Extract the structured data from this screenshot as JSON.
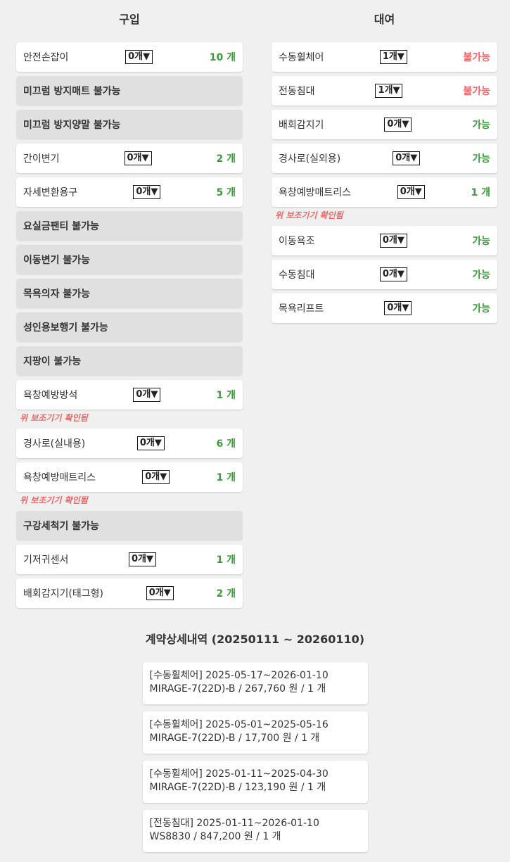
{
  "purchase": {
    "title": "구입",
    "rows": [
      {
        "type": "item",
        "name": "안전손잡이",
        "select": "0개▼",
        "value": "10 개",
        "status": "ok"
      },
      {
        "type": "na",
        "name": "미끄럼 방지매트 불가능"
      },
      {
        "type": "na",
        "name": "미끄럼 방지양말 불가능"
      },
      {
        "type": "item",
        "name": "간이변기",
        "select": "0개▼",
        "value": "2 개",
        "status": "ok"
      },
      {
        "type": "item",
        "name": "자세변환용구",
        "select": "0개▼",
        "value": "5 개",
        "status": "ok"
      },
      {
        "type": "na",
        "name": "요실금팬티 불가능"
      },
      {
        "type": "na",
        "name": "이동변기 불가능"
      },
      {
        "type": "na",
        "name": "목욕의자 불가능"
      },
      {
        "type": "na",
        "name": "성인용보행기 불가능"
      },
      {
        "type": "na",
        "name": "지팡이 불가능"
      },
      {
        "type": "item",
        "name": "욕창예방방석",
        "select": "0개▼",
        "value": "1 개",
        "status": "ok"
      },
      {
        "type": "note",
        "name": "위 보조기기 확인됨"
      },
      {
        "type": "item",
        "name": "경사로(실내용)",
        "select": "0개▼",
        "value": "6 개",
        "status": "ok"
      },
      {
        "type": "item",
        "name": "욕창예방매트리스",
        "select": "0개▼",
        "value": "1 개",
        "status": "ok"
      },
      {
        "type": "note",
        "name": "위 보조기기 확인됨"
      },
      {
        "type": "na",
        "name": "구강세척기 불가능"
      },
      {
        "type": "item",
        "name": "기저귀센서",
        "select": "0개▼",
        "value": "1 개",
        "status": "ok"
      },
      {
        "type": "item",
        "name": "배회감지기(태그형)",
        "select": "0개▼",
        "value": "2 개",
        "status": "ok"
      }
    ]
  },
  "rental": {
    "title": "대여",
    "rows": [
      {
        "type": "item",
        "name": "수동휠체어",
        "select": "1개▼",
        "value": "불가능",
        "status": "no"
      },
      {
        "type": "item",
        "name": "전동침대",
        "select": "1개▼",
        "value": "불가능",
        "status": "no"
      },
      {
        "type": "item",
        "name": "배회감지기",
        "select": "0개▼",
        "value": "가능",
        "status": "ok"
      },
      {
        "type": "item",
        "name": "경사로(실외용)",
        "select": "0개▼",
        "value": "가능",
        "status": "ok"
      },
      {
        "type": "item",
        "name": "욕창예방매트리스",
        "select": "0개▼",
        "value": "1 개",
        "status": "ok"
      },
      {
        "type": "note",
        "name": "위 보조기기 확인됨"
      },
      {
        "type": "item",
        "name": "이동욕조",
        "select": "0개▼",
        "value": "가능",
        "status": "ok"
      },
      {
        "type": "item",
        "name": "수동침대",
        "select": "0개▼",
        "value": "가능",
        "status": "ok"
      },
      {
        "type": "item",
        "name": "목욕리프트",
        "select": "0개▼",
        "value": "가능",
        "status": "ok"
      }
    ]
  },
  "contract": {
    "title": "계약상세내역 (20250111 ~ 20260110)",
    "cards": [
      {
        "line1": "[수동휠체어] 2025-05-17~2026-01-10",
        "line2": "MIRAGE-7(22D)-B / 267,760 원 / 1 개"
      },
      {
        "line1": "[수동휠체어] 2025-05-01~2025-05-16",
        "line2": "MIRAGE-7(22D)-B / 17,700 원 / 1 개"
      },
      {
        "line1": "[수동휠체어] 2025-01-11~2025-04-30",
        "line2": "MIRAGE-7(22D)-B / 123,190 원 / 1 개"
      },
      {
        "line1": "[전동침대] 2025-01-11~2026-01-10",
        "line2": "WS8830 / 847,200 원 / 1 개"
      }
    ]
  },
  "colors": {
    "ok": "#3c9c3c",
    "no": "#f06565",
    "na_bg": "#e0e0e0",
    "bg": "#f0f0f0"
  }
}
